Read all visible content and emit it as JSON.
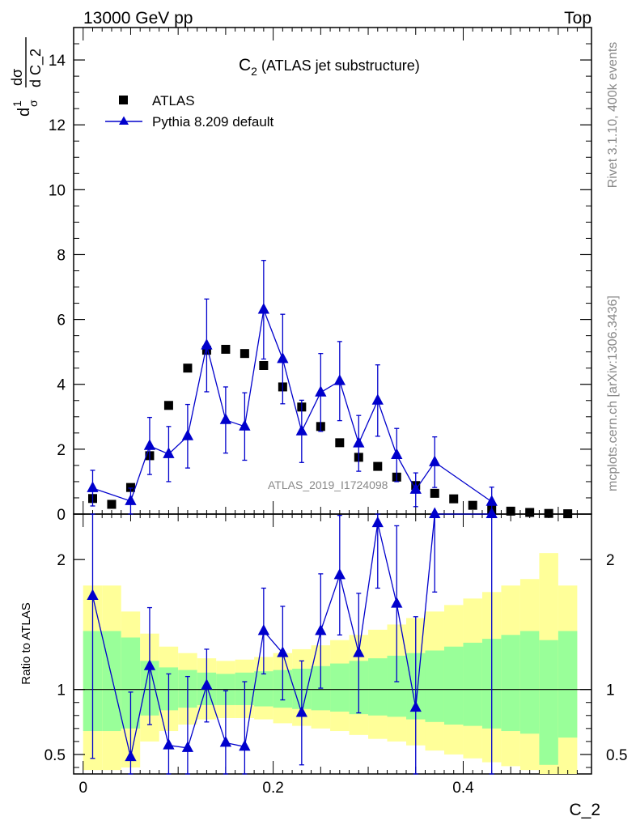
{
  "header": {
    "left": "13000 GeV pp",
    "right": "Top"
  },
  "side_labels": {
    "rivet": "Rivet 3.1.10,  400k events",
    "mcplots": "mcplots.cern.ch [arXiv:1306.3436]"
  },
  "chart_data": [
    {
      "type": "scatter",
      "title_main": "C",
      "title_sub": "2",
      "title_rest": " (ATLAS jet substructure)",
      "ylabel_parts": {
        "a": "d",
        "b": "1",
        "c": "σ",
        "d": "dσ",
        "e": "d C_2"
      },
      "xlim": [
        -0.01,
        0.535
      ],
      "ylim": [
        0,
        15
      ],
      "yticks": [
        0,
        2,
        4,
        6,
        8,
        10,
        12,
        14
      ],
      "ytick_labels": [
        "0",
        "2",
        "4",
        "6",
        "8",
        "10",
        "12",
        "14"
      ],
      "watermark": "ATLAS_2019_I1724098",
      "legend_placement": "top-left",
      "series": [
        {
          "name": "ATLAS",
          "marker": "square",
          "color": "#000000",
          "x": [
            0.01,
            0.03,
            0.05,
            0.07,
            0.09,
            0.11,
            0.13,
            0.15,
            0.17,
            0.19,
            0.21,
            0.23,
            0.25,
            0.27,
            0.29,
            0.31,
            0.33,
            0.35,
            0.37,
            0.39,
            0.41,
            0.43,
            0.45,
            0.47,
            0.49,
            0.51
          ],
          "y": [
            0.48,
            0.3,
            0.82,
            1.8,
            3.35,
            4.5,
            5.05,
            5.08,
            4.95,
            4.58,
            3.92,
            3.3,
            2.7,
            2.2,
            1.75,
            1.47,
            1.14,
            0.88,
            0.64,
            0.47,
            0.27,
            0.15,
            0.09,
            0.05,
            0.02,
            0.01
          ]
        },
        {
          "name": "Pythia 8.209 default",
          "marker": "triangle",
          "color": "#0000cc",
          "x": [
            0.01,
            0.05,
            0.07,
            0.09,
            0.11,
            0.13,
            0.15,
            0.17,
            0.19,
            0.21,
            0.23,
            0.25,
            0.27,
            0.29,
            0.31,
            0.33,
            0.35,
            0.37,
            0.43
          ],
          "y": [
            0.8,
            0.4,
            2.1,
            1.85,
            2.4,
            5.2,
            2.9,
            2.7,
            6.3,
            4.78,
            2.55,
            3.75,
            4.1,
            2.18,
            3.5,
            1.82,
            0.75,
            1.6,
            0.38
          ],
          "err": [
            0.55,
            0.4,
            0.88,
            0.85,
            0.98,
            1.43,
            1.02,
            1.04,
            1.52,
            1.38,
            0.96,
            1.2,
            1.22,
            0.86,
            1.1,
            0.82,
            0.52,
            0.78,
            0.45
          ]
        }
      ]
    },
    {
      "type": "scatter",
      "ylabel": "Ratio to ATLAS",
      "xlabel": "C_2",
      "xlim": [
        -0.01,
        0.535
      ],
      "ylim": [
        0.35,
        2.35
      ],
      "yticks": [
        0.5,
        1,
        2
      ],
      "ytick_labels": [
        "0.5",
        "1",
        "2"
      ],
      "xticks": [
        0,
        0.2,
        0.4
      ],
      "xtick_labels": [
        "0",
        "0.2",
        "0.4"
      ],
      "reference_line": 1,
      "bands": {
        "edges": [
          0,
          0.02,
          0.04,
          0.06,
          0.08,
          0.1,
          0.12,
          0.14,
          0.16,
          0.18,
          0.2,
          0.22,
          0.24,
          0.26,
          0.28,
          0.3,
          0.32,
          0.34,
          0.36,
          0.38,
          0.4,
          0.42,
          0.44,
          0.46,
          0.48,
          0.5,
          0.52
        ],
        "inner_color": "#99ff99",
        "outer_color": "#ffff99",
        "inner_low": [
          0.68,
          0.68,
          0.7,
          0.8,
          0.84,
          0.86,
          0.88,
          0.88,
          0.88,
          0.87,
          0.86,
          0.85,
          0.84,
          0.83,
          0.81,
          0.8,
          0.79,
          0.77,
          0.75,
          0.73,
          0.72,
          0.7,
          0.68,
          0.66,
          0.42,
          0.63
        ],
        "inner_high": [
          1.45,
          1.45,
          1.4,
          1.22,
          1.17,
          1.15,
          1.13,
          1.12,
          1.13,
          1.14,
          1.15,
          1.16,
          1.18,
          1.2,
          1.22,
          1.24,
          1.26,
          1.28,
          1.3,
          1.33,
          1.36,
          1.39,
          1.42,
          1.45,
          1.38,
          1.45
        ],
        "outer_low": [
          0.38,
          0.38,
          0.4,
          0.6,
          0.68,
          0.73,
          0.77,
          0.78,
          0.78,
          0.77,
          0.74,
          0.72,
          0.7,
          0.68,
          0.65,
          0.62,
          0.6,
          0.57,
          0.53,
          0.5,
          0.47,
          0.44,
          0.41,
          0.38,
          0.35,
          0.35
        ],
        "outer_high": [
          1.8,
          1.8,
          1.6,
          1.43,
          1.33,
          1.28,
          1.24,
          1.22,
          1.23,
          1.25,
          1.28,
          1.31,
          1.34,
          1.38,
          1.42,
          1.46,
          1.5,
          1.55,
          1.6,
          1.65,
          1.7,
          1.75,
          1.8,
          1.85,
          2.05,
          1.8
        ]
      },
      "series": [
        {
          "name": "Pythia 8.209 default",
          "marker": "triangle",
          "color": "#0000cc",
          "x": [
            0.01,
            0.05,
            0.07,
            0.09,
            0.11,
            0.13,
            0.15,
            0.17,
            0.19,
            0.21,
            0.23,
            0.25,
            0.27,
            0.29,
            0.31,
            0.33,
            0.35,
            0.37,
            0.43
          ],
          "y": [
            1.72,
            0.48,
            1.18,
            0.57,
            0.55,
            1.03,
            0.59,
            0.56,
            1.45,
            1.28,
            0.82,
            1.45,
            1.88,
            1.28,
            2.28,
            1.66,
            0.86,
            2.35,
            2.35
          ],
          "err_low": [
            1.25,
            0.48,
            0.45,
            0.55,
            0.52,
            0.28,
            0.4,
            0.52,
            0.33,
            0.36,
            0.4,
            0.44,
            0.46,
            0.46,
            0.5,
            0.6,
            0.7,
            0.6,
            2.35
          ],
          "err_high": [
            1.0,
            0.5,
            0.45,
            0.55,
            0.55,
            0.28,
            0.4,
            0.5,
            0.33,
            0.36,
            0.4,
            0.44,
            0.46,
            0.46,
            0.5,
            0.6,
            0.7,
            0.6,
            0.6
          ]
        }
      ]
    }
  ]
}
